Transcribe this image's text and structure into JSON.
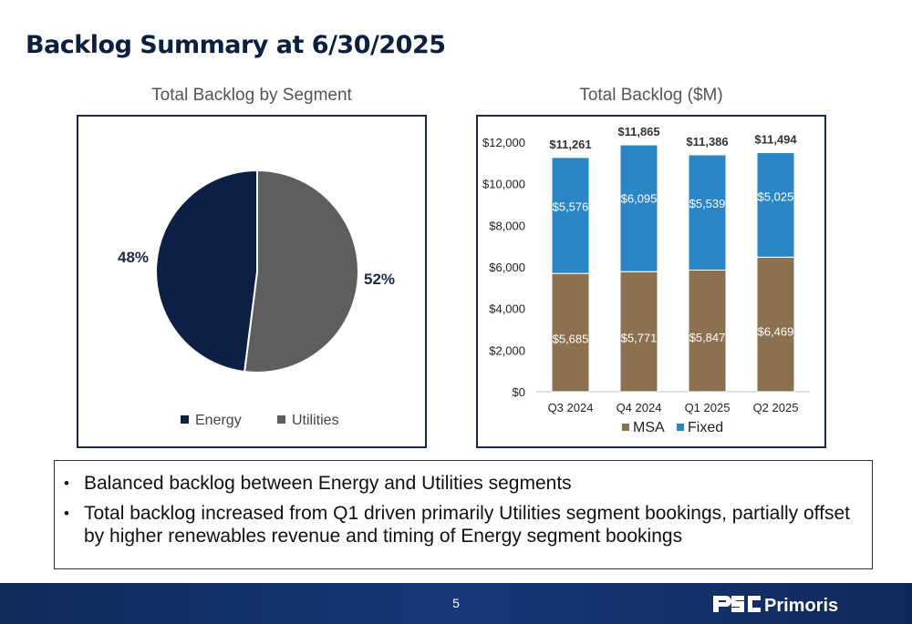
{
  "slide": {
    "title": "Backlog Summary at 6/30/2025",
    "page_number": "5"
  },
  "brand": {
    "logo_text": "Primoris",
    "footer_color": "#13306a"
  },
  "bullets": [
    "Balanced backlog between Energy and Utilities segments",
    "Total backlog increased from Q1 driven primarily Utilities segment bookings, partially offset by higher renewables revenue and timing of Energy segment bookings"
  ],
  "chart_data": [
    {
      "type": "pie",
      "title": "Total Backlog by Segment",
      "slices": [
        {
          "name": "Energy",
          "value": 48,
          "label": "48%",
          "color": "#0e1f45"
        },
        {
          "name": "Utilities",
          "value": 52,
          "label": "52%",
          "color": "#5e5e5e"
        }
      ],
      "legend": "bottom"
    },
    {
      "type": "bar",
      "stacked": true,
      "title": "Total Backlog ($M)",
      "categories": [
        "Q3 2024",
        "Q4 2024",
        "Q1 2025",
        "Q2 2025"
      ],
      "series": [
        {
          "name": "MSA",
          "values": [
            5685,
            5771,
            5847,
            6469
          ],
          "labels": [
            "$5,685",
            "$5,771",
            "$5,847",
            "$6,469"
          ],
          "color": "#8b7150"
        },
        {
          "name": "Fixed",
          "values": [
            5576,
            6095,
            5539,
            5025
          ],
          "labels": [
            "$5,576",
            "$6,095",
            "$5,539",
            "$5,025"
          ],
          "color": "#2b86c6"
        }
      ],
      "totals": [
        11261,
        11865,
        11386,
        11494
      ],
      "total_labels": [
        "$11,261",
        "$11,865",
        "$11,386",
        "$11,494"
      ],
      "ylim": [
        0,
        12000
      ],
      "yticks": [
        0,
        2000,
        4000,
        6000,
        8000,
        10000,
        12000
      ],
      "ytick_labels": [
        "$0",
        "$2,000",
        "$4,000",
        "$6,000",
        "$8,000",
        "$10,000",
        "$12,000"
      ],
      "grid": false,
      "legend": "bottom"
    }
  ]
}
